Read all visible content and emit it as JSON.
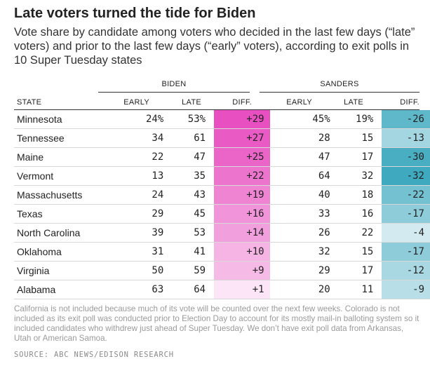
{
  "title": "Late voters turned the tide for Biden",
  "subtitle": "Vote share by candidate among voters who decided in the last few days (“late” voters) and prior to the last few days (“early” voters), according to exit polls in 10 Super Tuesday states",
  "note": "California is not included because much of its vote will be counted over the next few weeks. Colorado is not included as its exit poll was conducted prior to Election Day to account for its mostly mail-in balloting system so it included candidates who withdrew just ahead of Super Tuesday. We don’t have exit poll data from Arkansas, Utah or American Samoa.",
  "source": "SOURCE: ABC NEWS/EDISON RESEARCH",
  "groups": {
    "biden": "BIDEN",
    "sanders": "SANDERS"
  },
  "headers": {
    "state": "STATE",
    "early": "EARLY",
    "late": "LATE",
    "diff": "DIFF."
  },
  "colors": {
    "biden_max": "#e84fc0",
    "sanders_max": "#3fa9bf",
    "grid": "#d8d8d8",
    "text": "#222222"
  },
  "chart_data": {
    "type": "table",
    "title": "Late voters turned the tide for Biden",
    "columns": [
      "STATE",
      "BIDEN EARLY",
      "BIDEN LATE",
      "BIDEN DIFF.",
      "SANDERS EARLY",
      "SANDERS LATE",
      "SANDERS DIFF."
    ],
    "rows": [
      {
        "state": "Minnesota",
        "biden": {
          "early": "24%",
          "late": "53%",
          "diff": "+29",
          "diff_value": 29
        },
        "sanders": {
          "early": "45%",
          "late": "19%",
          "diff": "-26",
          "diff_value": -26
        }
      },
      {
        "state": "Tennessee",
        "biden": {
          "early": "34",
          "late": "61",
          "diff": "+27",
          "diff_value": 27
        },
        "sanders": {
          "early": "28",
          "late": "15",
          "diff": "-13",
          "diff_value": -13
        }
      },
      {
        "state": "Maine",
        "biden": {
          "early": "22",
          "late": "47",
          "diff": "+25",
          "diff_value": 25
        },
        "sanders": {
          "early": "47",
          "late": "17",
          "diff": "-30",
          "diff_value": -30
        }
      },
      {
        "state": "Vermont",
        "biden": {
          "early": "13",
          "late": "35",
          "diff": "+22",
          "diff_value": 22
        },
        "sanders": {
          "early": "64",
          "late": "32",
          "diff": "-32",
          "diff_value": -32
        }
      },
      {
        "state": "Massachusetts",
        "biden": {
          "early": "24",
          "late": "43",
          "diff": "+19",
          "diff_value": 19
        },
        "sanders": {
          "early": "40",
          "late": "18",
          "diff": "-22",
          "diff_value": -22
        }
      },
      {
        "state": "Texas",
        "biden": {
          "early": "29",
          "late": "45",
          "diff": "+16",
          "diff_value": 16
        },
        "sanders": {
          "early": "33",
          "late": "16",
          "diff": "-17",
          "diff_value": -17
        }
      },
      {
        "state": "North Carolina",
        "biden": {
          "early": "39",
          "late": "53",
          "diff": "+14",
          "diff_value": 14
        },
        "sanders": {
          "early": "26",
          "late": "22",
          "diff": "-4",
          "diff_value": -4
        }
      },
      {
        "state": "Oklahoma",
        "biden": {
          "early": "31",
          "late": "41",
          "diff": "+10",
          "diff_value": 10
        },
        "sanders": {
          "early": "32",
          "late": "15",
          "diff": "-17",
          "diff_value": -17
        }
      },
      {
        "state": "Virginia",
        "biden": {
          "early": "50",
          "late": "59",
          "diff": "+9",
          "diff_value": 9
        },
        "sanders": {
          "early": "29",
          "late": "17",
          "diff": "-12",
          "diff_value": -12
        }
      },
      {
        "state": "Alabama",
        "biden": {
          "early": "63",
          "late": "64",
          "diff": "+1",
          "diff_value": 1
        },
        "sanders": {
          "early": "20",
          "late": "11",
          "diff": "-9",
          "diff_value": -9
        }
      }
    ]
  }
}
